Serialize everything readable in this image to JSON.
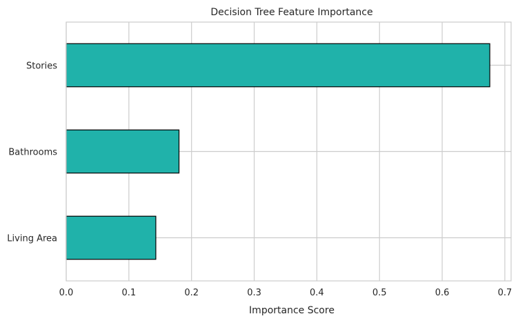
{
  "chart_data": {
    "type": "bar",
    "orientation": "horizontal",
    "title": "Decision Tree Feature Importance",
    "xlabel": "Importance Score",
    "ylabel": "",
    "categories": [
      "Stories",
      "Bathrooms",
      "Living Area"
    ],
    "values": [
      0.676,
      0.18,
      0.143
    ],
    "xlim": [
      0,
      0.71
    ],
    "xticks": [
      "0.0",
      "0.1",
      "0.2",
      "0.3",
      "0.4",
      "0.5",
      "0.6",
      "0.7"
    ],
    "grid": true,
    "legend": "none",
    "colors": {
      "bar_fill": "#20b2aa",
      "bar_edge": "#000000",
      "grid": "#cccccc",
      "axes_edge": "#cccccc",
      "text": "#262626"
    }
  }
}
